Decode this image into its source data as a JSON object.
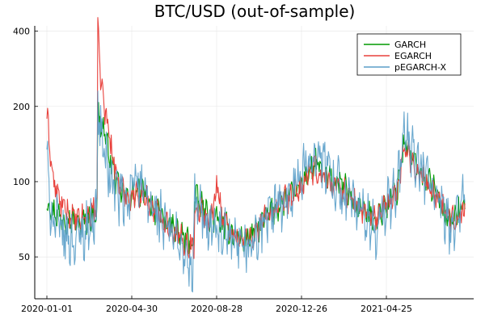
{
  "chart_data": {
    "type": "line",
    "title": "BTC/USD (out-of-sample)",
    "xlabel": "",
    "ylabel": "",
    "y_scale": "log",
    "grid": true,
    "legend_position": "top-right",
    "x_ticks": [
      "2020-01-01",
      "2020-04-30",
      "2020-08-28",
      "2020-12-26",
      "2021-04-25"
    ],
    "y_ticks": [
      50,
      100,
      200,
      400
    ],
    "x_range": [
      "2020-01-01",
      "2021-08-15"
    ],
    "y_range": [
      34,
      420
    ],
    "series": [
      {
        "name": "GARCH",
        "color": "#009a00",
        "anchors": [
          [
            "2020-01-01",
            85
          ],
          [
            "2020-01-10",
            76
          ],
          [
            "2020-01-22",
            72
          ],
          [
            "2020-02-05",
            70
          ],
          [
            "2020-02-15",
            68
          ],
          [
            "2020-02-26",
            70
          ],
          [
            "2020-03-08",
            74
          ],
          [
            "2020-03-12",
            80
          ],
          [
            "2020-03-13",
            190
          ],
          [
            "2020-03-16",
            175
          ],
          [
            "2020-03-22",
            160
          ],
          [
            "2020-03-30",
            125
          ],
          [
            "2020-04-10",
            95
          ],
          [
            "2020-04-25",
            85
          ],
          [
            "2020-05-10",
            92
          ],
          [
            "2020-05-20",
            88
          ],
          [
            "2020-06-01",
            78
          ],
          [
            "2020-06-20",
            68
          ],
          [
            "2020-07-05",
            62
          ],
          [
            "2020-07-20",
            58
          ],
          [
            "2020-07-27",
            56
          ],
          [
            "2020-07-28",
            88
          ],
          [
            "2020-08-05",
            80
          ],
          [
            "2020-08-20",
            72
          ],
          [
            "2020-09-05",
            68
          ],
          [
            "2020-09-20",
            62
          ],
          [
            "2020-10-05",
            58
          ],
          [
            "2020-10-20",
            62
          ],
          [
            "2020-11-05",
            72
          ],
          [
            "2020-11-20",
            78
          ],
          [
            "2020-12-05",
            86
          ],
          [
            "2020-12-20",
            92
          ],
          [
            "2021-01-05",
            108
          ],
          [
            "2021-01-15",
            118
          ],
          [
            "2021-01-28",
            105
          ],
          [
            "2021-02-10",
            100
          ],
          [
            "2021-02-25",
            95
          ],
          [
            "2021-03-10",
            82
          ],
          [
            "2021-03-25",
            75
          ],
          [
            "2021-04-10",
            72
          ],
          [
            "2021-04-25",
            80
          ],
          [
            "2021-05-10",
            92
          ],
          [
            "2021-05-20",
            145
          ],
          [
            "2021-05-28",
            130
          ],
          [
            "2021-06-10",
            110
          ],
          [
            "2021-06-25",
            100
          ],
          [
            "2021-07-10",
            82
          ],
          [
            "2021-07-25",
            70
          ],
          [
            "2021-08-05",
            76
          ],
          [
            "2021-08-14",
            80
          ]
        ],
        "noise": 0.1
      },
      {
        "name": "EGARCH",
        "color": "#e8413c",
        "anchors": [
          [
            "2020-01-01",
            185
          ],
          [
            "2020-01-05",
            140
          ],
          [
            "2020-01-10",
            100
          ],
          [
            "2020-01-20",
            82
          ],
          [
            "2020-02-05",
            72
          ],
          [
            "2020-02-15",
            70
          ],
          [
            "2020-02-26",
            72
          ],
          [
            "2020-03-08",
            78
          ],
          [
            "2020-03-12",
            85
          ],
          [
            "2020-03-13",
            420
          ],
          [
            "2020-03-16",
            280
          ],
          [
            "2020-03-22",
            200
          ],
          [
            "2020-03-30",
            150
          ],
          [
            "2020-04-10",
            100
          ],
          [
            "2020-04-25",
            86
          ],
          [
            "2020-05-10",
            90
          ],
          [
            "2020-05-20",
            86
          ],
          [
            "2020-06-01",
            78
          ],
          [
            "2020-06-20",
            68
          ],
          [
            "2020-07-05",
            60
          ],
          [
            "2020-07-20",
            56
          ],
          [
            "2020-07-27",
            55
          ],
          [
            "2020-07-28",
            80
          ],
          [
            "2020-08-05",
            76
          ],
          [
            "2020-08-20",
            70
          ],
          [
            "2020-08-29",
            100
          ],
          [
            "2020-09-05",
            72
          ],
          [
            "2020-09-20",
            62
          ],
          [
            "2020-10-05",
            58
          ],
          [
            "2020-10-20",
            62
          ],
          [
            "2020-11-05",
            72
          ],
          [
            "2020-11-20",
            78
          ],
          [
            "2020-12-05",
            85
          ],
          [
            "2020-12-20",
            90
          ],
          [
            "2021-01-05",
            105
          ],
          [
            "2021-01-15",
            112
          ],
          [
            "2021-01-28",
            102
          ],
          [
            "2021-02-10",
            98
          ],
          [
            "2021-02-25",
            92
          ],
          [
            "2021-03-10",
            82
          ],
          [
            "2021-03-25",
            76
          ],
          [
            "2021-04-10",
            72
          ],
          [
            "2021-04-25",
            80
          ],
          [
            "2021-05-10",
            90
          ],
          [
            "2021-05-20",
            140
          ],
          [
            "2021-05-28",
            125
          ],
          [
            "2021-06-10",
            108
          ],
          [
            "2021-06-25",
            98
          ],
          [
            "2021-07-10",
            82
          ],
          [
            "2021-07-25",
            70
          ],
          [
            "2021-08-05",
            74
          ],
          [
            "2021-08-14",
            78
          ]
        ],
        "noise": 0.1
      },
      {
        "name": "pEGARCH-X",
        "color": "#5a9ec9",
        "anchors": [
          [
            "2020-01-01",
            130
          ],
          [
            "2020-01-05",
            80
          ],
          [
            "2020-01-10",
            72
          ],
          [
            "2020-01-22",
            62
          ],
          [
            "2020-02-05",
            58
          ],
          [
            "2020-02-15",
            60
          ],
          [
            "2020-02-26",
            65
          ],
          [
            "2020-03-08",
            72
          ],
          [
            "2020-03-12",
            80
          ],
          [
            "2020-03-13",
            200
          ],
          [
            "2020-03-16",
            170
          ],
          [
            "2020-03-22",
            130
          ],
          [
            "2020-03-30",
            105
          ],
          [
            "2020-04-10",
            90
          ],
          [
            "2020-04-25",
            78
          ],
          [
            "2020-05-05",
            118
          ],
          [
            "2020-05-12",
            92
          ],
          [
            "2020-05-25",
            80
          ],
          [
            "2020-06-10",
            70
          ],
          [
            "2020-06-25",
            62
          ],
          [
            "2020-07-10",
            55
          ],
          [
            "2020-07-20",
            45
          ],
          [
            "2020-07-25",
            40
          ],
          [
            "2020-07-28",
            85
          ],
          [
            "2020-08-05",
            75
          ],
          [
            "2020-08-20",
            66
          ],
          [
            "2020-09-05",
            60
          ],
          [
            "2020-09-20",
            55
          ],
          [
            "2020-10-05",
            52
          ],
          [
            "2020-10-20",
            58
          ],
          [
            "2020-11-05",
            70
          ],
          [
            "2020-11-20",
            78
          ],
          [
            "2020-12-05",
            88
          ],
          [
            "2020-12-20",
            100
          ],
          [
            "2021-01-05",
            120
          ],
          [
            "2021-01-15",
            135
          ],
          [
            "2021-01-28",
            115
          ],
          [
            "2021-02-10",
            100
          ],
          [
            "2021-02-25",
            90
          ],
          [
            "2021-03-10",
            80
          ],
          [
            "2021-03-25",
            70
          ],
          [
            "2021-04-10",
            65
          ],
          [
            "2021-04-25",
            78
          ],
          [
            "2021-05-10",
            95
          ],
          [
            "2021-05-20",
            160
          ],
          [
            "2021-05-28",
            135
          ],
          [
            "2021-06-10",
            112
          ],
          [
            "2021-06-25",
            100
          ],
          [
            "2021-07-10",
            78
          ],
          [
            "2021-07-25",
            64
          ],
          [
            "2021-08-05",
            78
          ],
          [
            "2021-08-14",
            88
          ]
        ],
        "noise": 0.2
      }
    ]
  }
}
